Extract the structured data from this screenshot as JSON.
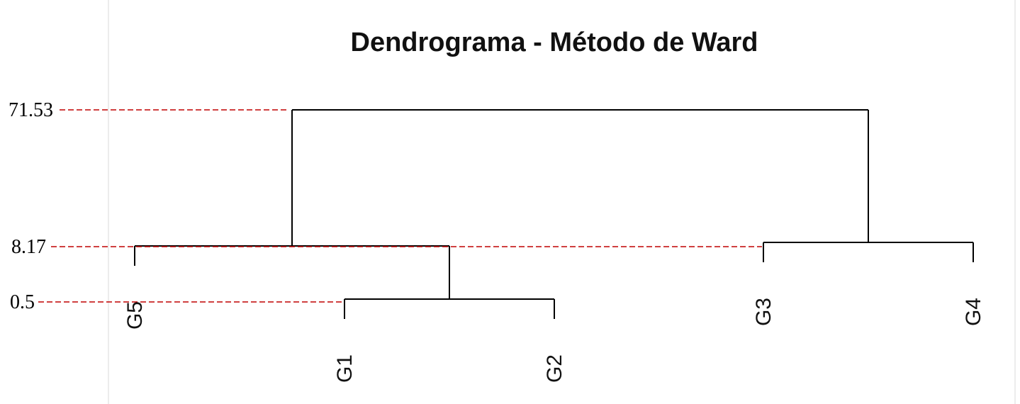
{
  "chart_data": {
    "type": "dendrogram",
    "title": "Dendrograma - Método de Ward",
    "leaves": [
      "G5",
      "G1",
      "G2",
      "G3",
      "G4"
    ],
    "merges": [
      {
        "id": "m1",
        "left": "G1",
        "right": "G2",
        "height": 0.5
      },
      {
        "id": "m2",
        "left": "G5",
        "right": "m1",
        "height": 8.17
      },
      {
        "id": "m3",
        "left": "G3",
        "right": "G4",
        "height": 8.17
      },
      {
        "id": "m4",
        "left": "m2",
        "right": "m3",
        "height": 71.53
      }
    ],
    "height_annotations": [
      {
        "label": "71.53",
        "value": 71.53,
        "color": "#c00000"
      },
      {
        "label": "8.17",
        "value": 8.17,
        "color": "#c00000"
      },
      {
        "label": "0.5",
        "value": 0.5,
        "color": "#c00000"
      }
    ]
  }
}
